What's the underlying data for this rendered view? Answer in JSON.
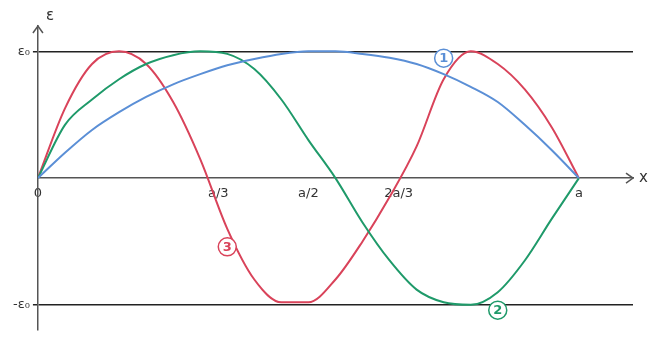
{
  "chart_data": {
    "type": "line",
    "x_label": "x",
    "y_label": "ε",
    "x": [
      0,
      0.05,
      0.1,
      0.15,
      0.2,
      0.25,
      0.3,
      0.35,
      0.4,
      0.45,
      0.5,
      0.55,
      0.6,
      0.65,
      0.7,
      0.75,
      0.8,
      0.85,
      0.9,
      0.95,
      1
    ],
    "series": [
      {
        "name": "1",
        "color": "#5b8fd6",
        "values": [
          0,
          0.2,
          0.38,
          0.52,
          0.64,
          0.74,
          0.82,
          0.89,
          0.94,
          0.98,
          1,
          1,
          0.98,
          0.95,
          0.9,
          0.82,
          0.72,
          0.6,
          0.42,
          0.22,
          0
        ]
      },
      {
        "name": "2",
        "color": "#1f9a6a",
        "values": [
          0,
          0.42,
          0.62,
          0.78,
          0.9,
          0.97,
          1,
          0.98,
          0.86,
          0.62,
          0.3,
          0,
          -0.35,
          -0.65,
          -0.88,
          -0.98,
          -1,
          -0.9,
          -0.65,
          -0.32,
          0
        ]
      },
      {
        "name": "3",
        "color": "#d9435a",
        "values": [
          0,
          0.55,
          0.9,
          1,
          0.9,
          0.6,
          0.15,
          -0.4,
          -0.8,
          -0.98,
          -0.98,
          -0.8,
          -0.5,
          -0.15,
          0.25,
          0.78,
          1,
          0.9,
          0.7,
          0.4,
          0
        ]
      }
    ],
    "xlim": [
      0,
      1.1
    ],
    "xticks": [
      {
        "value": 0,
        "label": "0"
      },
      {
        "value": 0.3333,
        "label": "a/3"
      },
      {
        "value": 0.5,
        "label": "a/2"
      },
      {
        "value": 0.6667,
        "label": "2a/3"
      },
      {
        "value": 1,
        "label": "a"
      }
    ],
    "ylim": [
      -1.2,
      1.2
    ],
    "yticks": [
      {
        "value": -1,
        "label": "-ε₀"
      },
      {
        "value": 1,
        "label": "ε₀"
      }
    ],
    "grid": "y"
  }
}
